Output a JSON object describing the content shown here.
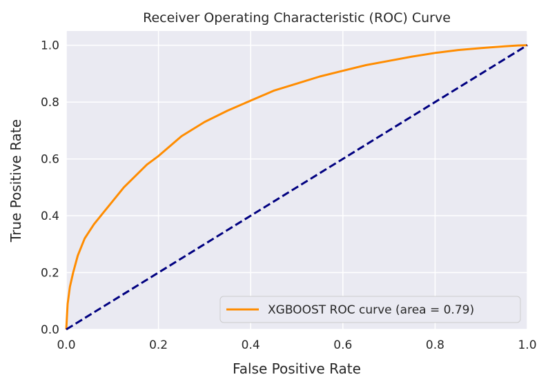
{
  "chart_data": {
    "type": "line",
    "title": "Receiver Operating Characteristic (ROC) Curve",
    "xlabel": "False Positive Rate",
    "ylabel": "True Positive Rate",
    "xlim": [
      0.0,
      1.0
    ],
    "ylim": [
      0.0,
      1.05
    ],
    "x_ticks": [
      "0.0",
      "0.2",
      "0.4",
      "0.6",
      "0.8",
      "1.0"
    ],
    "y_ticks": [
      "0.0",
      "0.2",
      "0.4",
      "0.6",
      "0.8",
      "1.0"
    ],
    "grid": true,
    "legend_position": "lower-right",
    "series": [
      {
        "name": "XGBOOST ROC curve (area = 0.79)",
        "color": "#ff8c00",
        "style": "solid",
        "x": [
          0.0,
          0.003,
          0.008,
          0.015,
          0.025,
          0.04,
          0.06,
          0.08,
          0.1,
          0.125,
          0.15,
          0.175,
          0.2,
          0.25,
          0.3,
          0.35,
          0.4,
          0.45,
          0.5,
          0.55,
          0.6,
          0.65,
          0.7,
          0.75,
          0.8,
          0.85,
          0.9,
          0.95,
          0.98,
          1.0
        ],
        "y": [
          0.0,
          0.09,
          0.15,
          0.2,
          0.26,
          0.32,
          0.37,
          0.41,
          0.45,
          0.5,
          0.54,
          0.58,
          0.61,
          0.68,
          0.73,
          0.77,
          0.805,
          0.84,
          0.865,
          0.89,
          0.91,
          0.93,
          0.945,
          0.96,
          0.973,
          0.983,
          0.99,
          0.996,
          0.999,
          1.0
        ]
      },
      {
        "name": "",
        "color": "#000080",
        "style": "dashed",
        "x": [
          0.0,
          1.0
        ],
        "y": [
          0.0,
          1.0
        ]
      }
    ],
    "legend": [
      {
        "label": "XGBOOST ROC curve (area = 0.79)",
        "color": "#ff8c00"
      }
    ],
    "colors": {
      "background": "#eaeaf2",
      "grid": "#ffffff"
    }
  }
}
